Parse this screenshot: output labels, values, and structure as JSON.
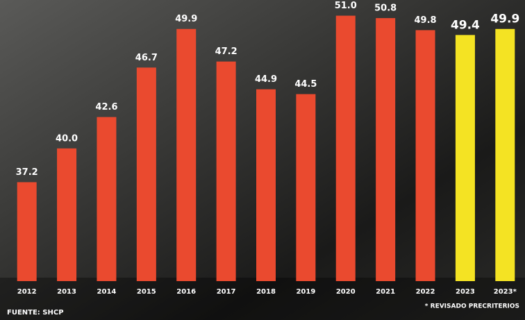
{
  "chart_data": {
    "type": "bar",
    "categories": [
      "2012",
      "2013",
      "2014",
      "2015",
      "2016",
      "2017",
      "2018",
      "2019",
      "2020",
      "2021",
      "2022",
      "2023",
      "2023*"
    ],
    "values": [
      37.2,
      40.0,
      42.6,
      46.7,
      49.9,
      47.2,
      44.9,
      44.5,
      51.0,
      50.8,
      49.8,
      49.4,
      49.9
    ],
    "value_labels": [
      "37.2",
      "40.0",
      "42.6",
      "46.7",
      "49.9",
      "47.2",
      "44.9",
      "44.5",
      "51.0",
      "50.8",
      "49.8",
      "49.4",
      "49.9"
    ],
    "colors": [
      "#ea4a2f",
      "#ea4a2f",
      "#ea4a2f",
      "#ea4a2f",
      "#ea4a2f",
      "#ea4a2f",
      "#ea4a2f",
      "#ea4a2f",
      "#ea4a2f",
      "#ea4a2f",
      "#ea4a2f",
      "#f4e323",
      "#f4e323"
    ],
    "ylim": [
      29,
      52.3
    ],
    "source": "FUENTE: SHCP",
    "note": "* REVISADO PRECRITERIOS"
  }
}
